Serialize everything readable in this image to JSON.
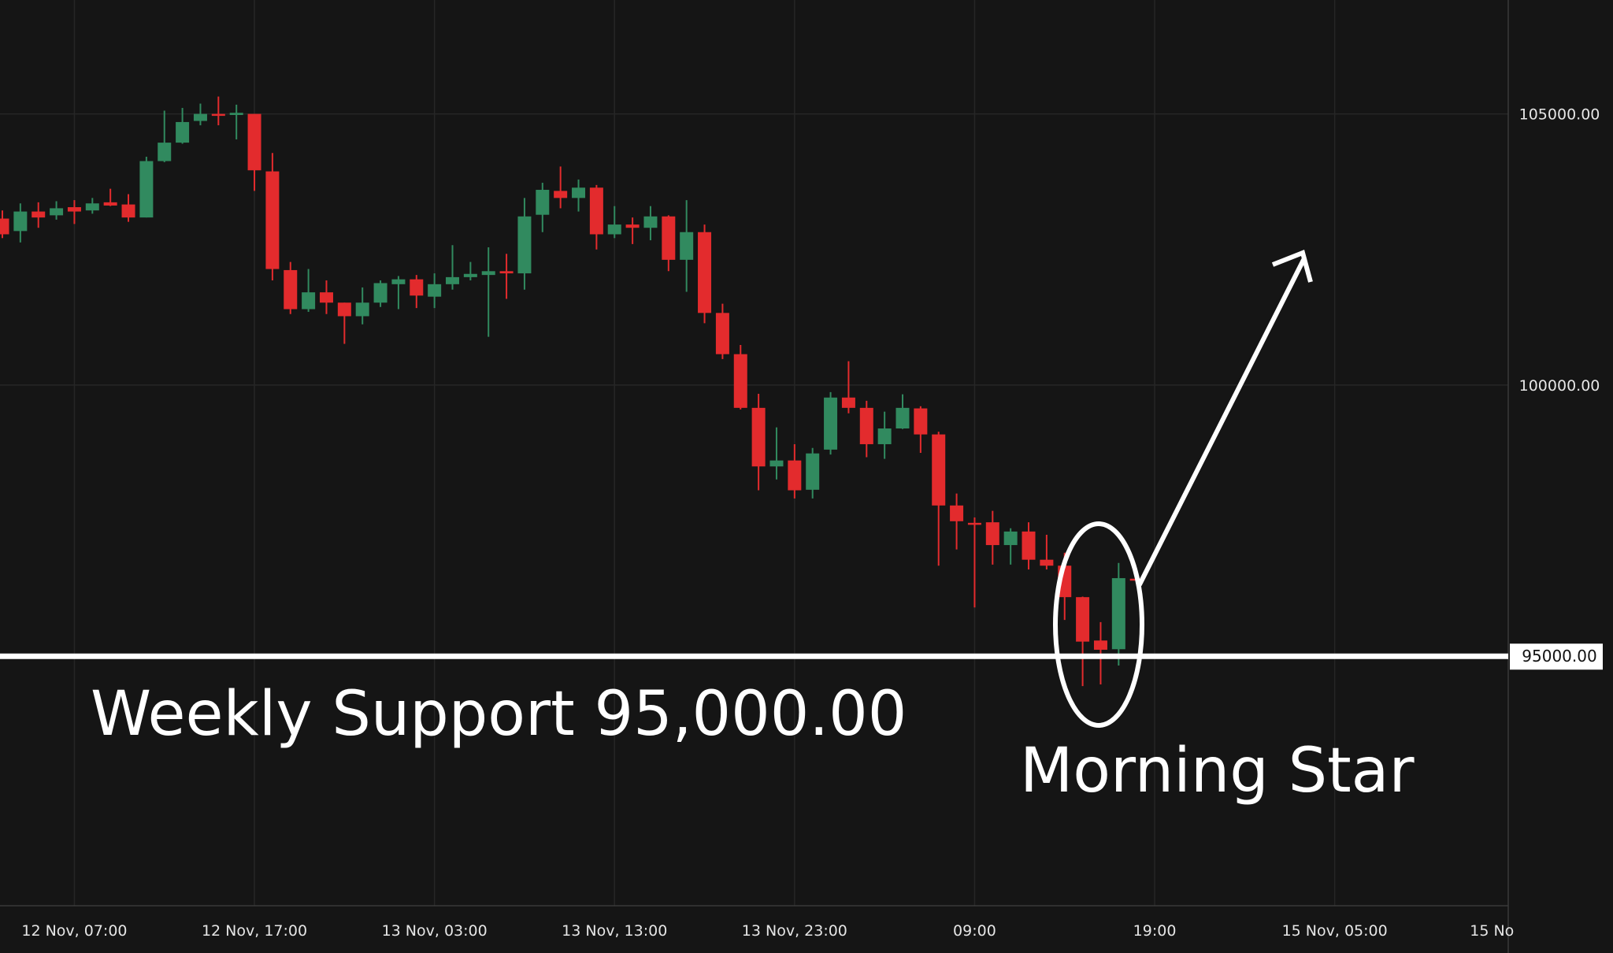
{
  "chart_data": {
    "type": "candlestick",
    "interval": "1h",
    "start": "12 Nov 03:00",
    "ylim": [
      90400,
      107100
    ],
    "grid": true,
    "colors": {
      "background": "#151515",
      "up": "#318a5f",
      "down": "#e32b2d",
      "grid": "#262626",
      "annotation": "#ffffff"
    },
    "y_ticks": [
      {
        "value": 105000,
        "label": "105000.00"
      },
      {
        "value": 100000,
        "label": "100000.00"
      }
    ],
    "highlight_price": {
      "value": 95000,
      "label": "95000.00"
    },
    "x_ticks": [
      {
        "time": "12 Nov 07:00",
        "label": "12 Nov, 07:00"
      },
      {
        "time": "12 Nov 17:00",
        "label": "12 Nov, 17:00"
      },
      {
        "time": "13 Nov 03:00",
        "label": "13 Nov, 03:00"
      },
      {
        "time": "13 Nov 13:00",
        "label": "13 Nov, 13:00"
      },
      {
        "time": "13 Nov 23:00",
        "label": "13 Nov, 23:00"
      },
      {
        "time": "14 Nov 09:00",
        "label": "09:00"
      },
      {
        "time": "14 Nov 19:00",
        "label": "19:00"
      },
      {
        "time": "15 Nov 05:00",
        "label": "15 Nov, 05:00"
      },
      {
        "time": "15 Nov 15:00",
        "label": "15 No"
      }
    ],
    "ohlc_fields": [
      "open",
      "high",
      "low",
      "close"
    ],
    "ohlc": [
      [
        103070,
        103220,
        102710,
        102780
      ],
      [
        102840,
        103350,
        102630,
        103200
      ],
      [
        103200,
        103370,
        102900,
        103090
      ],
      [
        103130,
        103390,
        103050,
        103260
      ],
      [
        103280,
        103410,
        102970,
        103200
      ],
      [
        103220,
        103450,
        103160,
        103350
      ],
      [
        103370,
        103620,
        103300,
        103310
      ],
      [
        103330,
        103520,
        103010,
        103090
      ],
      [
        103090,
        104210,
        103090,
        104130
      ],
      [
        104130,
        105060,
        104110,
        104470
      ],
      [
        104470,
        105110,
        104450,
        104850
      ],
      [
        104870,
        105190,
        104790,
        105000
      ],
      [
        105000,
        105320,
        104790,
        104980
      ],
      [
        104980,
        105170,
        104530,
        105020
      ],
      [
        105000,
        105000,
        103580,
        103960
      ],
      [
        103940,
        104280,
        101930,
        102140
      ],
      [
        102120,
        102270,
        101310,
        101400
      ],
      [
        101400,
        102140,
        101350,
        101710
      ],
      [
        101710,
        101930,
        101310,
        101520
      ],
      [
        101520,
        101520,
        100760,
        101270
      ],
      [
        101270,
        101800,
        101120,
        101520
      ],
      [
        101520,
        101930,
        101440,
        101880
      ],
      [
        101860,
        102010,
        101400,
        101950
      ],
      [
        101950,
        102030,
        101420,
        101650
      ],
      [
        101630,
        102060,
        101420,
        101860
      ],
      [
        101860,
        102580,
        101760,
        101990
      ],
      [
        101990,
        102270,
        101930,
        102050
      ],
      [
        102030,
        102540,
        100890,
        102100
      ],
      [
        102100,
        102420,
        101590,
        102060
      ],
      [
        102060,
        103450,
        101760,
        103110
      ],
      [
        103140,
        103730,
        102820,
        103600
      ],
      [
        103580,
        104030,
        103260,
        103450
      ],
      [
        103450,
        103790,
        103200,
        103640
      ],
      [
        103640,
        103690,
        102500,
        102780
      ],
      [
        102780,
        103300,
        102710,
        102960
      ],
      [
        102960,
        103090,
        102600,
        102900
      ],
      [
        102900,
        103300,
        102670,
        103110
      ],
      [
        103110,
        103130,
        102100,
        102310
      ],
      [
        102310,
        103410,
        101720,
        102820
      ],
      [
        102820,
        102960,
        101140,
        101330
      ],
      [
        101330,
        101500,
        100480,
        100570
      ],
      [
        100570,
        100740,
        99550,
        99580
      ],
      [
        99580,
        99840,
        98060,
        98500
      ],
      [
        98500,
        99220,
        98260,
        98610
      ],
      [
        98610,
        98910,
        97910,
        98060
      ],
      [
        98070,
        98840,
        97910,
        98740
      ],
      [
        98810,
        99870,
        98720,
        99770
      ],
      [
        99770,
        100440,
        99480,
        99580
      ],
      [
        99580,
        99710,
        98670,
        98910
      ],
      [
        98910,
        99510,
        98640,
        99200
      ],
      [
        99200,
        99830,
        99190,
        99580
      ],
      [
        99570,
        99610,
        98750,
        99090
      ],
      [
        99090,
        99140,
        96670,
        97780
      ],
      [
        97780,
        98000,
        96970,
        97490
      ],
      [
        97460,
        97560,
        95900,
        97440
      ],
      [
        97470,
        97680,
        96690,
        97050
      ],
      [
        97050,
        97360,
        96690,
        97300
      ],
      [
        97300,
        97470,
        96600,
        96780
      ],
      [
        96780,
        97240,
        96600,
        96670
      ],
      [
        96670,
        96910,
        95670,
        96090
      ],
      [
        96090,
        96100,
        94450,
        95270
      ],
      [
        95290,
        95630,
        94480,
        95120
      ],
      [
        95130,
        96720,
        94830,
        96440
      ],
      [
        96430,
        96440,
        96410,
        96420
      ]
    ],
    "annotations": {
      "support_label": "Weekly Support 95,000.00",
      "pattern_label": "Morning Star"
    }
  }
}
